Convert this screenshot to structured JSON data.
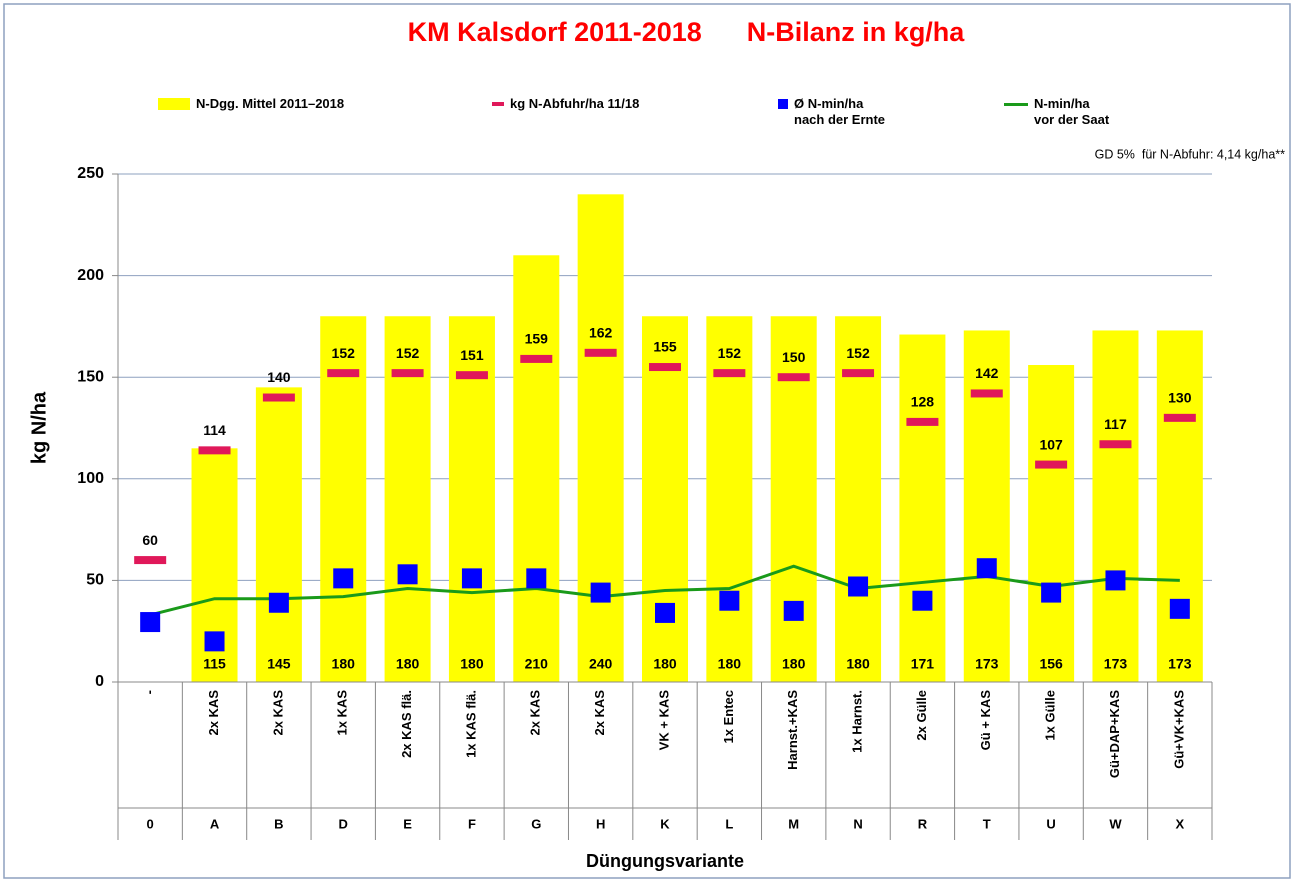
{
  "chart_data": {
    "type": "bar",
    "title": "KM Kalsdorf 2011-2018      N-Bilanz in kg/ha",
    "annotation": "GD 5%  für N-Abfuhr: 4,14 kg/ha**",
    "y_label": "kg N/ha",
    "x_label": "Düngungsvariante",
    "categories": [
      "0",
      "A",
      "B",
      "D",
      "E",
      "F",
      "G",
      "H",
      "K",
      "L",
      "M",
      "N",
      "R",
      "T",
      "U",
      "W",
      "X"
    ],
    "category_names": [
      "-",
      "2x KAS",
      "2x KAS",
      "1x KAS",
      "2x KAS flä.",
      "1x KAS flä.",
      "2x KAS",
      "2x KAS",
      "VK + KAS",
      "1x Entec",
      "Harnst.+KAS",
      "1x Harnst.",
      "2x Gülle",
      "Gü + KAS",
      "1x Gülle",
      "Gü+DAP+KAS",
      "Gü+VK+KAS"
    ],
    "ylim": [
      0,
      250
    ],
    "yticks": [
      0,
      50,
      100,
      150,
      200,
      250
    ],
    "grid": true,
    "series": [
      {
        "name": "N-Dgg. Mittel 2011–2018",
        "type": "bar",
        "color": "#ffff00",
        "values": [
          null,
          115,
          145,
          180,
          180,
          180,
          210,
          240,
          180,
          180,
          180,
          180,
          171,
          173,
          156,
          173,
          173
        ]
      },
      {
        "name": "kg N-Abfuhr/ha 11/18",
        "type": "dash",
        "color": "#e0185a",
        "values": [
          60,
          114,
          140,
          152,
          152,
          151,
          159,
          162,
          155,
          152,
          150,
          152,
          128,
          142,
          107,
          117,
          130
        ]
      },
      {
        "name": "Ø  N-min/ha\nnach der Ernte",
        "type": "square",
        "color": "#0000ff",
        "values": [
          29.5,
          20,
          39,
          51,
          53,
          51,
          51,
          44,
          34,
          40,
          35,
          47,
          40,
          56,
          44,
          50,
          36
        ]
      },
      {
        "name": "N-min/ha\nvor der Saat",
        "type": "line",
        "color": "#1a9a1a",
        "values": [
          33,
          41,
          41,
          42,
          46,
          44,
          46,
          42,
          45,
          46,
          57,
          46,
          49,
          52,
          47,
          51,
          50
        ]
      }
    ]
  }
}
